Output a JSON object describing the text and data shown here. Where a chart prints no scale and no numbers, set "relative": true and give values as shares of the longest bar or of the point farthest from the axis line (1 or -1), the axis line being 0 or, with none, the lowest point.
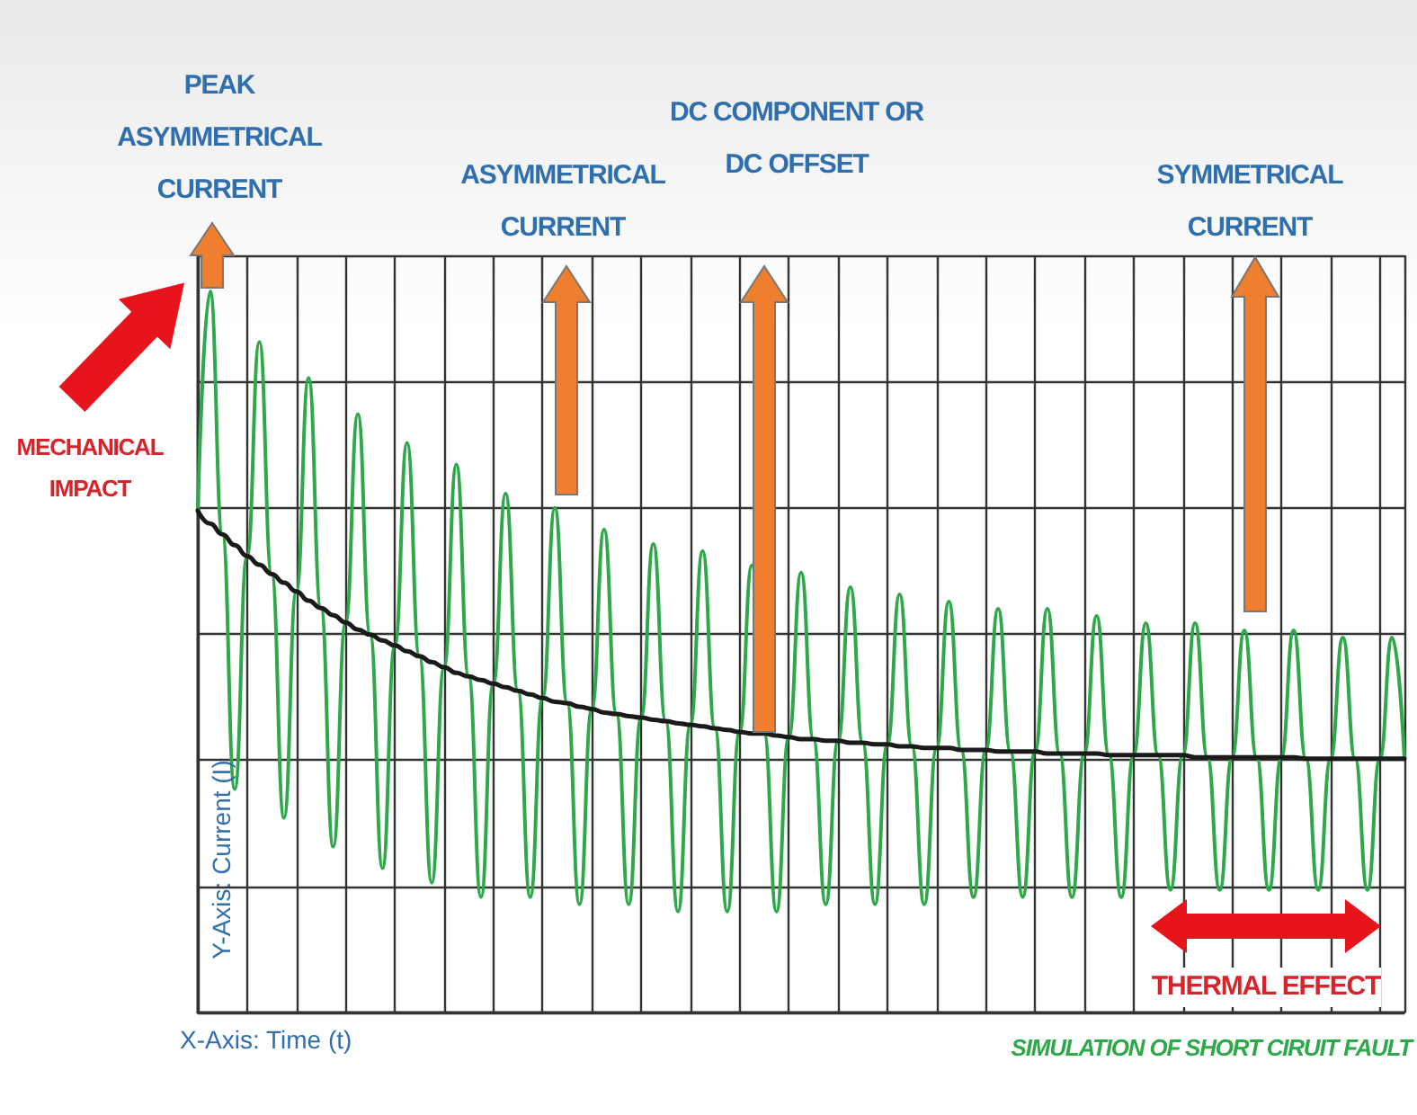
{
  "chart_data": {
    "type": "line",
    "relative": true,
    "xlabel": "X-Axis: Time (t)",
    "ylabel": "Y-Axis: Current (I)",
    "categories": [
      null,
      null,
      null,
      null,
      null,
      null,
      null,
      null,
      null,
      null,
      null,
      null,
      null,
      null,
      null,
      null,
      null,
      null,
      null,
      null,
      null,
      null,
      null,
      null,
      null,
      null,
      null,
      null,
      null,
      null,
      null,
      null,
      null,
      null,
      null,
      null,
      null,
      null,
      null,
      null,
      null,
      null,
      null,
      null,
      null,
      null,
      null,
      null,
      null,
      null,
      null,
      null,
      null,
      null,
      null,
      null,
      null,
      null,
      null,
      null,
      null,
      null,
      null,
      null,
      null,
      null,
      null,
      null,
      null,
      null,
      null,
      null,
      null,
      null,
      null,
      null,
      null,
      null,
      null,
      null,
      null,
      null,
      null,
      null,
      null,
      null,
      null,
      null,
      null,
      null,
      null,
      null,
      null,
      null,
      null,
      null,
      null,
      null,
      null
    ],
    "series": [
      {
        "color": "#2ea84a",
        "values": [
          0.696,
          1.0,
          0.663,
          0.31,
          0.633,
          0.93,
          0.608,
          0.27,
          0.584,
          0.88,
          0.561,
          0.23,
          0.541,
          0.83,
          0.524,
          0.2,
          0.509,
          0.79,
          0.494,
          0.18,
          0.479,
          0.76,
          0.466,
          0.16,
          0.456,
          0.72,
          0.446,
          0.16,
          0.436,
          0.7,
          0.429,
          0.15,
          0.421,
          0.67,
          0.414,
          0.15,
          0.409,
          0.65,
          0.404,
          0.14,
          0.399,
          0.64,
          0.394,
          0.14,
          0.389,
          0.62,
          0.387,
          0.14,
          0.382,
          0.61,
          0.379,
          0.15,
          0.377,
          0.59,
          0.374,
          0.15,
          0.372,
          0.58,
          0.369,
          0.15,
          0.367,
          0.57,
          0.364,
          0.16,
          0.364,
          0.56,
          0.362,
          0.16,
          0.362,
          0.56,
          0.359,
          0.16,
          0.359,
          0.55,
          0.357,
          0.16,
          0.357,
          0.54,
          0.357,
          0.17,
          0.357,
          0.54,
          0.354,
          0.17,
          0.354,
          0.53,
          0.354,
          0.17,
          0.354,
          0.53,
          0.352,
          0.17,
          0.352,
          0.52,
          0.352,
          0.17,
          0.352,
          0.52,
          0.352
        ]
      },
      {
        "color": "#1a1a1a",
        "values": [
          0.696,
          0.678,
          0.663,
          0.648,
          0.633,
          0.621,
          0.608,
          0.596,
          0.584,
          0.571,
          0.561,
          0.551,
          0.541,
          0.531,
          0.524,
          0.516,
          0.509,
          0.501,
          0.494,
          0.486,
          0.479,
          0.471,
          0.466,
          0.461,
          0.456,
          0.451,
          0.446,
          0.441,
          0.436,
          0.431,
          0.429,
          0.424,
          0.421,
          0.416,
          0.414,
          0.411,
          0.409,
          0.406,
          0.404,
          0.401,
          0.399,
          0.397,
          0.394,
          0.392,
          0.389,
          0.387,
          0.387,
          0.384,
          0.382,
          0.379,
          0.379,
          0.377,
          0.377,
          0.374,
          0.374,
          0.372,
          0.372,
          0.369,
          0.369,
          0.367,
          0.367,
          0.367,
          0.364,
          0.364,
          0.364,
          0.362,
          0.362,
          0.362,
          0.362,
          0.359,
          0.359,
          0.359,
          0.359,
          0.359,
          0.357,
          0.357,
          0.357,
          0.357,
          0.357,
          0.357,
          0.357,
          0.354,
          0.354,
          0.354,
          0.354,
          0.354,
          0.354,
          0.354,
          0.354,
          0.354,
          0.352,
          0.352,
          0.352,
          0.352,
          0.352,
          0.352,
          0.352,
          0.352,
          0.352
        ]
      }
    ],
    "annotations": [
      "PEAK ASYMMETRICAL CURRENT",
      "ASYMMETRICAL CURRENT",
      "DC COMPONENT OR DC OFFSET",
      "SYMMETRICAL CURRENT",
      "MECHANICAL IMPACT",
      "THERMAL EFFECT",
      "SIMULATION OF SHORT CIRUIT FAULT"
    ],
    "grid": true,
    "marker": "none",
    "line_style": "solid"
  }
}
